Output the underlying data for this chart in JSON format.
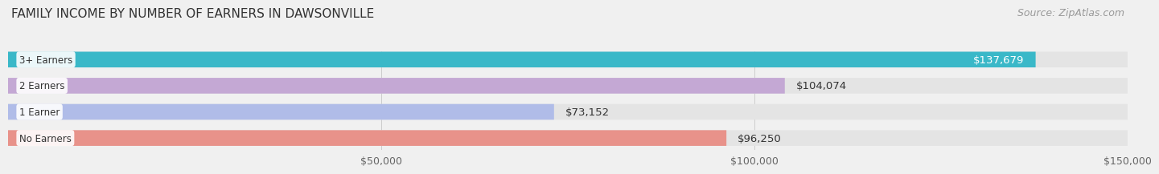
{
  "title": "FAMILY INCOME BY NUMBER OF EARNERS IN DAWSONVILLE",
  "source": "Source: ZipAtlas.com",
  "categories": [
    "No Earners",
    "1 Earner",
    "2 Earners",
    "3+ Earners"
  ],
  "values": [
    96250,
    73152,
    104074,
    137679
  ],
  "bar_colors": [
    "#e8928a",
    "#b0bce8",
    "#c4a8d4",
    "#3ab8c8"
  ],
  "label_colors": [
    "#333333",
    "#333333",
    "#333333",
    "#ffffff"
  ],
  "xlim": [
    0,
    150000
  ],
  "xticks": [
    50000,
    100000,
    150000
  ],
  "xtick_labels": [
    "$50,000",
    "$100,000",
    "$150,000"
  ],
  "background_color": "#f0f0f0",
  "bar_background": "#e4e4e4",
  "title_fontsize": 11,
  "source_fontsize": 9,
  "bar_height": 0.6,
  "bar_label_fontsize": 9.5,
  "category_fontsize": 8.5,
  "value_labels": [
    "$96,250",
    "$73,152",
    "$104,074",
    "$137,679"
  ]
}
